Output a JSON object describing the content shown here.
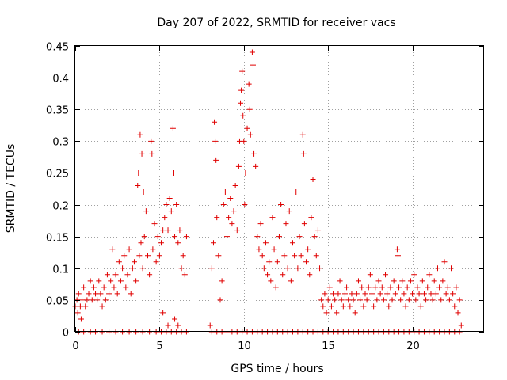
{
  "chart_data": {
    "type": "scatter",
    "title": "Day 207 of 2022, SRMTID for receiver vacs",
    "xlabel": "GPS time / hours",
    "ylabel": "SRMTID / TECUs",
    "xlim": [
      0,
      24.25
    ],
    "ylim": [
      0,
      0.45
    ],
    "grid": true,
    "marker": "+",
    "color": "#e00000",
    "xticks": [
      0,
      5,
      10,
      15,
      20
    ],
    "xtick_labels": [
      "0",
      "5",
      "10",
      "15",
      "20"
    ],
    "yticks": [
      0,
      0.05,
      0.1,
      0.15,
      0.2,
      0.25,
      0.3,
      0.35,
      0.4,
      0.45
    ],
    "ytick_labels": [
      "0",
      "0.05",
      "0.1",
      "0.15",
      "0.2",
      "0.25",
      "0.3",
      "0.35",
      "0.4",
      "0.45"
    ],
    "series": [
      {
        "name": "vacs",
        "points": [
          [
            0.0,
            0.04
          ],
          [
            0.1,
            0.05
          ],
          [
            0.15,
            0.03
          ],
          [
            0.2,
            0.06
          ],
          [
            0.3,
            0.04
          ],
          [
            0.35,
            0.02
          ],
          [
            0.4,
            0.05
          ],
          [
            0.5,
            0.07
          ],
          [
            0.6,
            0.04
          ],
          [
            0.7,
            0.05
          ],
          [
            0.8,
            0.06
          ],
          [
            0.9,
            0.08
          ],
          [
            1.0,
            0.05
          ],
          [
            1.1,
            0.07
          ],
          [
            1.2,
            0.06
          ],
          [
            1.3,
            0.05
          ],
          [
            1.4,
            0.08
          ],
          [
            1.5,
            0.06
          ],
          [
            1.6,
            0.04
          ],
          [
            1.7,
            0.07
          ],
          [
            1.8,
            0.05
          ],
          [
            1.9,
            0.09
          ],
          [
            2.0,
            0.06
          ],
          [
            2.1,
            0.08
          ],
          [
            2.2,
            0.13
          ],
          [
            2.3,
            0.07
          ],
          [
            2.4,
            0.09
          ],
          [
            2.5,
            0.06
          ],
          [
            2.6,
            0.11
          ],
          [
            2.7,
            0.08
          ],
          [
            2.8,
            0.1
          ],
          [
            2.9,
            0.12
          ],
          [
            3.0,
            0.07
          ],
          [
            3.1,
            0.09
          ],
          [
            3.2,
            0.13
          ],
          [
            3.3,
            0.06
          ],
          [
            3.4,
            0.1
          ],
          [
            3.5,
            0.11
          ],
          [
            3.6,
            0.08
          ],
          [
            3.7,
            0.23
          ],
          [
            3.75,
            0.25
          ],
          [
            3.8,
            0.12
          ],
          [
            3.85,
            0.31
          ],
          [
            3.9,
            0.14
          ],
          [
            3.95,
            0.28
          ],
          [
            4.0,
            0.1
          ],
          [
            4.05,
            0.22
          ],
          [
            4.1,
            0.15
          ],
          [
            4.2,
            0.19
          ],
          [
            4.3,
            0.12
          ],
          [
            4.4,
            0.09
          ],
          [
            4.5,
            0.3
          ],
          [
            4.55,
            0.28
          ],
          [
            4.6,
            0.13
          ],
          [
            4.7,
            0.17
          ],
          [
            4.8,
            0.11
          ],
          [
            4.9,
            0.15
          ],
          [
            5.0,
            0.12
          ],
          [
            5.1,
            0.14
          ],
          [
            5.2,
            0.16
          ],
          [
            5.3,
            0.18
          ],
          [
            5.4,
            0.2
          ],
          [
            5.5,
            0.16
          ],
          [
            5.6,
            0.21
          ],
          [
            5.7,
            0.19
          ],
          [
            5.8,
            0.32
          ],
          [
            5.85,
            0.25
          ],
          [
            5.9,
            0.15
          ],
          [
            6.0,
            0.2
          ],
          [
            6.1,
            0.14
          ],
          [
            6.2,
            0.16
          ],
          [
            6.3,
            0.1
          ],
          [
            6.4,
            0.12
          ],
          [
            6.5,
            0.09
          ],
          [
            6.6,
            0.15
          ],
          [
            5.2,
            0.03
          ],
          [
            5.5,
            0.01
          ],
          [
            5.9,
            0.02
          ],
          [
            6.1,
            0.01
          ],
          [
            8.0,
            0.01
          ],
          [
            8.1,
            0.1
          ],
          [
            8.2,
            0.14
          ],
          [
            8.25,
            0.33
          ],
          [
            8.3,
            0.3
          ],
          [
            8.35,
            0.27
          ],
          [
            8.4,
            0.18
          ],
          [
            8.5,
            0.12
          ],
          [
            8.6,
            0.05
          ],
          [
            8.7,
            0.08
          ],
          [
            8.8,
            0.2
          ],
          [
            8.9,
            0.22
          ],
          [
            9.0,
            0.15
          ],
          [
            9.1,
            0.18
          ],
          [
            9.2,
            0.21
          ],
          [
            9.3,
            0.17
          ],
          [
            9.4,
            0.19
          ],
          [
            9.5,
            0.23
          ],
          [
            9.6,
            0.16
          ],
          [
            9.7,
            0.26
          ],
          [
            9.75,
            0.3
          ],
          [
            9.8,
            0.36
          ],
          [
            9.85,
            0.38
          ],
          [
            9.9,
            0.41
          ],
          [
            9.95,
            0.34
          ],
          [
            10.0,
            0.3
          ],
          [
            10.05,
            0.2
          ],
          [
            10.1,
            0.25
          ],
          [
            10.2,
            0.32
          ],
          [
            10.3,
            0.39
          ],
          [
            10.35,
            0.35
          ],
          [
            10.4,
            0.31
          ],
          [
            10.5,
            0.44
          ],
          [
            10.55,
            0.42
          ],
          [
            10.6,
            0.28
          ],
          [
            10.7,
            0.26
          ],
          [
            10.8,
            0.15
          ],
          [
            10.9,
            0.13
          ],
          [
            11.0,
            0.17
          ],
          [
            11.1,
            0.12
          ],
          [
            11.2,
            0.1
          ],
          [
            11.3,
            0.14
          ],
          [
            11.4,
            0.09
          ],
          [
            11.5,
            0.11
          ],
          [
            11.6,
            0.08
          ],
          [
            11.7,
            0.18
          ],
          [
            11.8,
            0.13
          ],
          [
            11.9,
            0.07
          ],
          [
            12.0,
            0.11
          ],
          [
            12.1,
            0.15
          ],
          [
            12.2,
            0.2
          ],
          [
            12.3,
            0.09
          ],
          [
            12.4,
            0.12
          ],
          [
            12.5,
            0.17
          ],
          [
            12.6,
            0.1
          ],
          [
            12.7,
            0.19
          ],
          [
            12.8,
            0.08
          ],
          [
            12.9,
            0.14
          ],
          [
            13.0,
            0.12
          ],
          [
            13.1,
            0.22
          ],
          [
            13.2,
            0.1
          ],
          [
            13.3,
            0.15
          ],
          [
            13.4,
            0.12
          ],
          [
            13.5,
            0.31
          ],
          [
            13.55,
            0.28
          ],
          [
            13.6,
            0.17
          ],
          [
            13.7,
            0.11
          ],
          [
            13.8,
            0.13
          ],
          [
            13.9,
            0.09
          ],
          [
            14.0,
            0.18
          ],
          [
            14.1,
            0.24
          ],
          [
            14.2,
            0.15
          ],
          [
            14.3,
            0.12
          ],
          [
            14.4,
            0.16
          ],
          [
            14.5,
            0.1
          ],
          [
            14.6,
            0.05
          ],
          [
            14.7,
            0.04
          ],
          [
            14.8,
            0.06
          ],
          [
            14.9,
            0.03
          ],
          [
            15.0,
            0.05
          ],
          [
            15.1,
            0.07
          ],
          [
            15.2,
            0.04
          ],
          [
            15.3,
            0.06
          ],
          [
            15.4,
            0.05
          ],
          [
            15.5,
            0.03
          ],
          [
            15.6,
            0.06
          ],
          [
            15.7,
            0.08
          ],
          [
            15.8,
            0.05
          ],
          [
            15.9,
            0.04
          ],
          [
            16.0,
            0.06
          ],
          [
            16.1,
            0.07
          ],
          [
            16.2,
            0.05
          ],
          [
            16.3,
            0.04
          ],
          [
            16.4,
            0.06
          ],
          [
            16.5,
            0.05
          ],
          [
            16.6,
            0.03
          ],
          [
            16.7,
            0.06
          ],
          [
            16.8,
            0.08
          ],
          [
            16.9,
            0.05
          ],
          [
            17.0,
            0.07
          ],
          [
            17.1,
            0.04
          ],
          [
            17.2,
            0.06
          ],
          [
            17.3,
            0.05
          ],
          [
            17.4,
            0.07
          ],
          [
            17.5,
            0.09
          ],
          [
            17.6,
            0.06
          ],
          [
            17.7,
            0.04
          ],
          [
            17.8,
            0.07
          ],
          [
            17.9,
            0.05
          ],
          [
            18.0,
            0.08
          ],
          [
            18.1,
            0.06
          ],
          [
            18.2,
            0.07
          ],
          [
            18.3,
            0.05
          ],
          [
            18.4,
            0.09
          ],
          [
            18.5,
            0.06
          ],
          [
            18.6,
            0.04
          ],
          [
            18.7,
            0.07
          ],
          [
            18.8,
            0.05
          ],
          [
            18.9,
            0.08
          ],
          [
            19.0,
            0.06
          ],
          [
            19.1,
            0.13
          ],
          [
            19.15,
            0.12
          ],
          [
            19.2,
            0.07
          ],
          [
            19.3,
            0.05
          ],
          [
            19.4,
            0.08
          ],
          [
            19.5,
            0.06
          ],
          [
            19.6,
            0.04
          ],
          [
            19.7,
            0.07
          ],
          [
            19.8,
            0.05
          ],
          [
            19.9,
            0.08
          ],
          [
            20.0,
            0.06
          ],
          [
            20.1,
            0.09
          ],
          [
            20.2,
            0.05
          ],
          [
            20.3,
            0.07
          ],
          [
            20.4,
            0.06
          ],
          [
            20.5,
            0.04
          ],
          [
            20.6,
            0.08
          ],
          [
            20.7,
            0.06
          ],
          [
            20.8,
            0.05
          ],
          [
            20.9,
            0.07
          ],
          [
            21.0,
            0.09
          ],
          [
            21.1,
            0.06
          ],
          [
            21.2,
            0.05
          ],
          [
            21.3,
            0.08
          ],
          [
            21.4,
            0.06
          ],
          [
            21.5,
            0.1
          ],
          [
            21.6,
            0.07
          ],
          [
            21.7,
            0.05
          ],
          [
            21.8,
            0.08
          ],
          [
            21.9,
            0.11
          ],
          [
            22.0,
            0.06
          ],
          [
            22.1,
            0.07
          ],
          [
            22.2,
            0.05
          ],
          [
            22.3,
            0.1
          ],
          [
            22.4,
            0.06
          ],
          [
            22.5,
            0.04
          ],
          [
            22.6,
            0.07
          ],
          [
            22.7,
            0.03
          ],
          [
            22.8,
            0.05
          ],
          [
            22.9,
            0.01
          ]
        ],
        "zero_band": [
          [
            0.2,
            0.0
          ],
          [
            0.5,
            0.0
          ],
          [
            0.9,
            0.0
          ],
          [
            1.2,
            0.0
          ],
          [
            1.6,
            0.0
          ],
          [
            2.0,
            0.0
          ],
          [
            2.4,
            0.0
          ],
          [
            2.8,
            0.0
          ],
          [
            3.2,
            0.0
          ],
          [
            3.6,
            0.0
          ],
          [
            4.0,
            0.0
          ],
          [
            4.4,
            0.0
          ],
          [
            4.8,
            0.0
          ],
          [
            5.1,
            0.0
          ],
          [
            5.4,
            0.0
          ],
          [
            5.7,
            0.0
          ],
          [
            6.0,
            0.0
          ],
          [
            6.3,
            0.0
          ],
          [
            6.6,
            0.0
          ],
          [
            8.1,
            0.0
          ],
          [
            8.4,
            0.0
          ],
          [
            8.7,
            0.0
          ],
          [
            9.0,
            0.0
          ],
          [
            9.3,
            0.0
          ],
          [
            9.6,
            0.0
          ],
          [
            9.9,
            0.0
          ],
          [
            10.2,
            0.0
          ],
          [
            10.5,
            0.0
          ],
          [
            10.8,
            0.0
          ],
          [
            11.1,
            0.0
          ],
          [
            11.4,
            0.0
          ],
          [
            11.7,
            0.0
          ],
          [
            12.0,
            0.0
          ],
          [
            12.3,
            0.0
          ],
          [
            12.6,
            0.0
          ],
          [
            12.9,
            0.0
          ],
          [
            13.2,
            0.0
          ],
          [
            13.5,
            0.0
          ],
          [
            13.8,
            0.0
          ],
          [
            14.1,
            0.0
          ],
          [
            14.4,
            0.0
          ],
          [
            14.7,
            0.0
          ],
          [
            15.0,
            0.0
          ],
          [
            15.3,
            0.0
          ],
          [
            15.6,
            0.0
          ],
          [
            15.9,
            0.0
          ],
          [
            16.2,
            0.0
          ],
          [
            16.5,
            0.0
          ],
          [
            16.8,
            0.0
          ],
          [
            17.1,
            0.0
          ],
          [
            17.4,
            0.0
          ],
          [
            17.7,
            0.0
          ],
          [
            18.0,
            0.0
          ],
          [
            18.3,
            0.0
          ],
          [
            18.6,
            0.0
          ],
          [
            18.9,
            0.0
          ],
          [
            19.2,
            0.0
          ],
          [
            19.5,
            0.0
          ],
          [
            19.8,
            0.0
          ],
          [
            20.1,
            0.0
          ],
          [
            20.4,
            0.0
          ],
          [
            20.7,
            0.0
          ],
          [
            21.0,
            0.0
          ],
          [
            21.3,
            0.0
          ],
          [
            21.6,
            0.0
          ],
          [
            21.9,
            0.0
          ],
          [
            22.2,
            0.0
          ],
          [
            22.5,
            0.0
          ],
          [
            22.8,
            0.0
          ]
        ]
      }
    ]
  }
}
